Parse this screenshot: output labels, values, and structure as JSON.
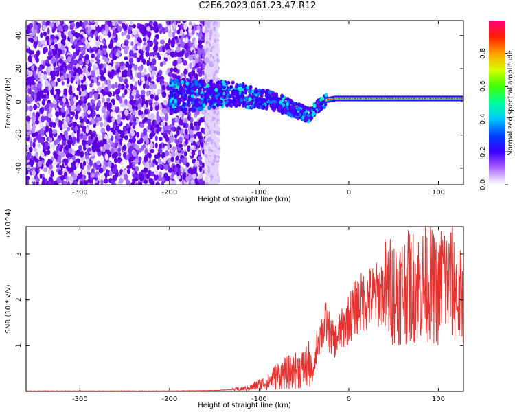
{
  "title": "C2E6.2023.061.23.47.R12",
  "chart_data": [
    {
      "type": "heatmap",
      "xlabel": "Height of straight line (km)",
      "ylabel": "Frequency (Hz)",
      "xlim": [
        -360,
        128
      ],
      "ylim": [
        -50,
        49
      ],
      "xticks": [
        -300,
        -200,
        -100,
        0,
        100
      ],
      "yticks": [
        -40,
        -20,
        0,
        20,
        40
      ],
      "colorbar": {
        "label": "Normalized spectral amplitude",
        "range": [
          0,
          1
        ],
        "ticks": [
          "0.0",
          "0.2",
          "0.4",
          "0.6",
          "0.8"
        ]
      },
      "ridge": {
        "x": [
          -200,
          -160,
          -140,
          -120,
          -100,
          -80,
          -60,
          -45,
          -35,
          -25,
          -15,
          0,
          20,
          50,
          80,
          100,
          128
        ],
        "y": [
          3,
          4,
          5,
          4,
          2,
          0,
          -5,
          -8,
          -3,
          1,
          2,
          2,
          2,
          2,
          2,
          2,
          2
        ]
      }
    },
    {
      "type": "line",
      "xlabel": "Height of straight line (km)",
      "ylabel": "SNR (10 * v/v)",
      "y_multiplier": "(x10^4)",
      "xlim": [
        -360,
        128
      ],
      "ylim": [
        0,
        3.6
      ],
      "xticks": [
        -300,
        -200,
        -100,
        0,
        100
      ],
      "yticks": [
        1,
        2,
        3
      ],
      "series": [
        {
          "color": "#e8302e",
          "x": [
            -360,
            -300,
            -200,
            -150,
            -120,
            -110,
            -100,
            -90,
            -80,
            -70,
            -60,
            -50,
            -45,
            -40,
            -35,
            -30,
            -25,
            -20,
            -15,
            -10,
            -5,
            0,
            10,
            20,
            30,
            40,
            50,
            60,
            70,
            80,
            90,
            100,
            105,
            110,
            115,
            120,
            128
          ],
          "y": [
            0.01,
            0.01,
            0.01,
            0.02,
            0.05,
            0.08,
            0.15,
            0.2,
            0.35,
            0.4,
            0.45,
            0.5,
            0.6,
            0.3,
            1.1,
            1.3,
            1.5,
            1.2,
            1.1,
            1.3,
            1.4,
            1.6,
            1.9,
            2.0,
            2.1,
            2.2,
            2.2,
            2.25,
            2.3,
            2.3,
            2.4,
            2.1,
            2.6,
            2.3,
            2.4,
            2.2,
            1.9
          ]
        }
      ]
    }
  ]
}
